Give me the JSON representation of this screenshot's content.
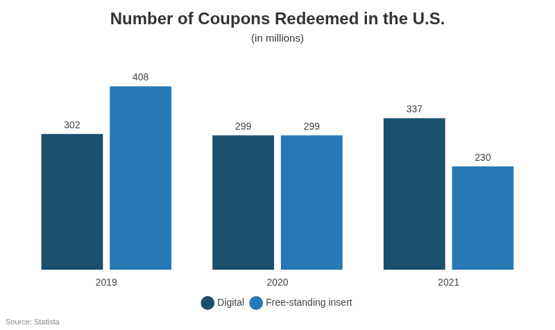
{
  "chart_data": {
    "type": "bar",
    "title": "Number of Coupons Redeemed in the U.S.",
    "subtitle": "(in millions)",
    "categories": [
      "2019",
      "2020",
      "2021"
    ],
    "series": [
      {
        "name": "Digital",
        "color": "#1a4f6e",
        "values": [
          302,
          299,
          337
        ]
      },
      {
        "name": "Free-standing insert",
        "color": "#2878b5",
        "values": [
          408,
          299,
          230
        ]
      }
    ],
    "ylim": [
      0,
      460
    ],
    "grid": false,
    "legend": "bottom",
    "data_labels": true,
    "tick_labels": "x",
    "annotations": [
      "Source: Statista"
    ]
  }
}
